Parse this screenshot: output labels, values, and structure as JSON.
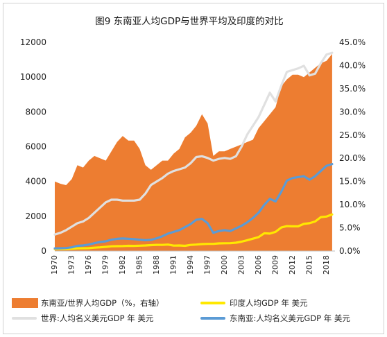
{
  "chart_data": {
    "type": "line",
    "title": "图9 东南亚人均GDP与世界平均及印度的对比",
    "x": [
      1970,
      1971,
      1972,
      1973,
      1974,
      1975,
      1976,
      1977,
      1978,
      1979,
      1980,
      1981,
      1982,
      1983,
      1984,
      1985,
      1986,
      1987,
      1988,
      1989,
      1990,
      1991,
      1992,
      1993,
      1994,
      1995,
      1996,
      1997,
      1998,
      1999,
      2000,
      2001,
      2002,
      2003,
      2004,
      2005,
      2006,
      2007,
      2008,
      2009,
      2010,
      2011,
      2012,
      2013,
      2014,
      2015,
      2016,
      2017,
      2018,
      2019
    ],
    "xticks": [
      "1970",
      "1973",
      "1976",
      "1979",
      "1982",
      "1985",
      "1988",
      "1991",
      "1994",
      "1997",
      "2000",
      "2003",
      "2006",
      "2009",
      "2012",
      "2015",
      "2018"
    ],
    "ylim_left": [
      0,
      12000
    ],
    "yticks_left": [
      "0",
      "2000",
      "4000",
      "6000",
      "8000",
      "10000",
      "12000"
    ],
    "ylim_right": [
      0,
      45
    ],
    "yticks_right": [
      "0.0%",
      "5.0%",
      "10.0%",
      "15.0%",
      "20.0%",
      "25.0%",
      "30.0%",
      "35.0%",
      "40.0%",
      "45.0%"
    ],
    "grid": false,
    "legend_position": "bottom",
    "series": [
      {
        "name": "东南亚/世界人均GDP（%，右轴）",
        "type": "area",
        "axis": "right",
        "color": "#ED7D31",
        "values": [
          15.0,
          14.5,
          14.2,
          15.5,
          18.5,
          18.0,
          19.5,
          20.5,
          20.0,
          19.5,
          21.5,
          23.5,
          24.8,
          23.8,
          23.8,
          22.0,
          18.5,
          17.5,
          18.5,
          19.5,
          19.5,
          21.0,
          22.0,
          24.5,
          25.5,
          27.0,
          29.5,
          27.5,
          20.5,
          21.5,
          21.5,
          22.0,
          22.5,
          23.0,
          23.5,
          24.0,
          26.5,
          28.0,
          29.5,
          31.0,
          35.5,
          37.0,
          38.0,
          38.0,
          37.5,
          38.5,
          39.5,
          40.5,
          41.0,
          42.5
        ]
      },
      {
        "name": "世界:人均名义美元GDP 年 美元",
        "type": "line",
        "axis": "left",
        "color": "#E0E0E0",
        "values": [
          950,
          1050,
          1200,
          1400,
          1600,
          1700,
          1900,
          2200,
          2500,
          2800,
          2950,
          2950,
          2900,
          2900,
          2900,
          2950,
          3300,
          3800,
          4000,
          4200,
          4450,
          4600,
          4700,
          4800,
          5050,
          5400,
          5450,
          5350,
          5200,
          5300,
          5350,
          5300,
          5450,
          6000,
          6700,
          7200,
          7700,
          8400,
          9100,
          8600,
          9500,
          10300,
          10400,
          10500,
          10650,
          10100,
          10200,
          10800,
          11300,
          11400
        ]
      },
      {
        "name": "印度人均GDP 年 美元",
        "type": "line",
        "axis": "left",
        "color": "#FFE800",
        "values": [
          110,
          115,
          120,
          130,
          150,
          160,
          165,
          190,
          210,
          240,
          270,
          280,
          285,
          300,
          295,
          305,
          320,
          340,
          355,
          350,
          370,
          310,
          320,
          300,
          350,
          370,
          400,
          410,
          410,
          440,
          445,
          450,
          480,
          540,
          620,
          710,
          800,
          1020,
          1000,
          1100,
          1350,
          1430,
          1420,
          1420,
          1560,
          1600,
          1700,
          1950,
          1980,
          2100
        ]
      },
      {
        "name": "东南亚:人均名义美元GDP 年 美元",
        "type": "line",
        "axis": "left",
        "color": "#5B9BD5",
        "values": [
          150,
          160,
          170,
          210,
          300,
          320,
          370,
          450,
          520,
          560,
          650,
          700,
          720,
          700,
          680,
          650,
          620,
          640,
          730,
          850,
          1000,
          1100,
          1200,
          1370,
          1550,
          1800,
          1850,
          1600,
          1050,
          1150,
          1200,
          1150,
          1300,
          1450,
          1650,
          1900,
          2200,
          2650,
          3000,
          2850,
          3400,
          4050,
          4200,
          4250,
          4300,
          4100,
          4300,
          4600,
          4900,
          5000
        ]
      }
    ],
    "legend_order": [
      0,
      2,
      1,
      3
    ]
  }
}
